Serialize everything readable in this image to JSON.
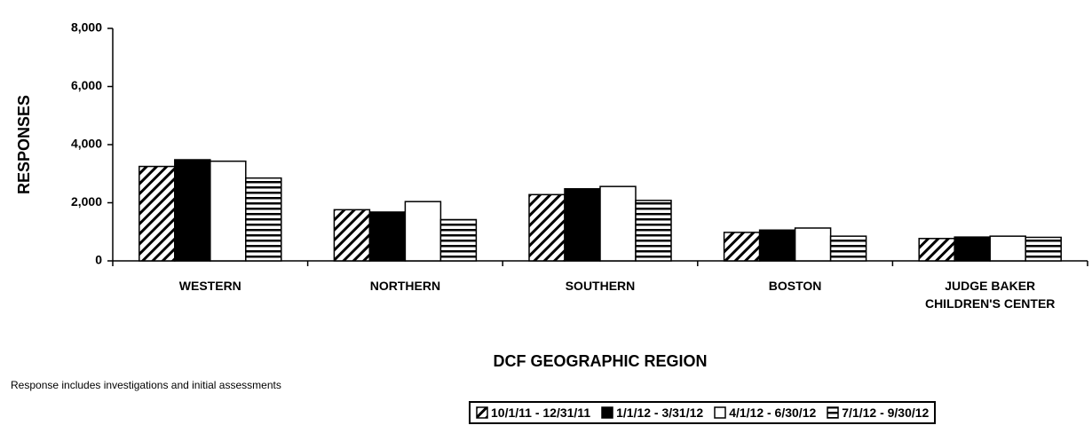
{
  "chart_data": {
    "type": "bar",
    "categories": [
      "WESTERN",
      "NORTHERN",
      "SOUTHERN",
      "BOSTON",
      "JUDGE BAKER CHILDREN'S CENTER"
    ],
    "series": [
      {
        "name": "10/1/11 - 12/31/11",
        "pattern": "diagonal",
        "values": [
          3250,
          1760,
          2280,
          980,
          770
        ]
      },
      {
        "name": "1/1/12 - 3/31/12",
        "pattern": "solid-black",
        "values": [
          3480,
          1680,
          2480,
          1060,
          820
        ]
      },
      {
        "name": "4/1/12 - 6/30/12",
        "pattern": "solid-white",
        "values": [
          3430,
          2040,
          2560,
          1130,
          850
        ]
      },
      {
        "name": "7/1/12 - 9/30/12",
        "pattern": "horizontal",
        "values": [
          2850,
          1420,
          2080,
          850,
          810
        ]
      }
    ],
    "ylim": [
      0,
      8000
    ],
    "yticks": [
      0,
      {
        "value": 2000,
        "label": "2,000"
      },
      {
        "value": 4000,
        "label": "4,000"
      },
      {
        "value": 6000,
        "label": "6,000"
      },
      {
        "value": 8000,
        "label": "8,000"
      }
    ],
    "ylabel": "RESPONSES",
    "xlabel": "DCF GEOGRAPHIC REGION",
    "note": "Response includes investigations and initial assessments",
    "legend": "bottom"
  }
}
